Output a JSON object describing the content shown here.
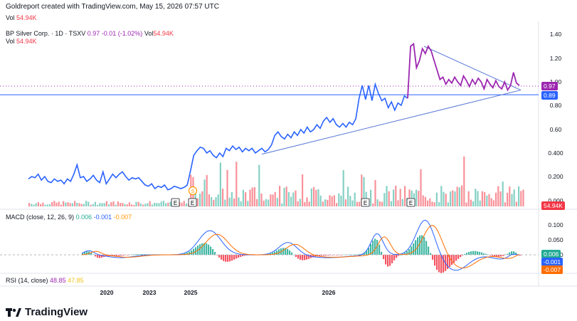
{
  "header": {
    "created": "Goldreport created with TradingView.com, May 15, 2026 07:57 UTC",
    "vol_label": "Vol",
    "vol_value": "54.94K"
  },
  "main_legend": {
    "symbol": "BP Silver Corp. · 1D · TSXV",
    "price": "0.97",
    "change": "-0.01 (-1.02%)",
    "vol_label": "Vol",
    "vol_value": "54.94K",
    "vol2_label": "Vol",
    "vol2_value": "54.94K"
  },
  "macd_legend": {
    "label": "MACD (close, 12, 26, 9)",
    "hist": "0.006",
    "macd": "-0.001",
    "signal": "-0.007"
  },
  "rsi_legend": {
    "label": "RSI (14, close)",
    "rsi": "48.85",
    "ma": "47.85"
  },
  "badges": {
    "price": "0.97",
    "level": "0.89",
    "volume": "54.94K",
    "macd_hist": "0.006",
    "macd": "-0.001",
    "signal": "-0.007"
  },
  "events": {
    "earnings": "E",
    "dividend": "S"
  },
  "footer": {
    "brand": "TradingView"
  },
  "colors": {
    "price_line_early": "#2962ff",
    "price_line_late": "#9c27b0",
    "trendline": "#5b7bd6",
    "level_line": "#2962ff",
    "vol_up": "#22ab94",
    "vol_down": "#f23645",
    "macd_line": "#2962ff",
    "signal_line": "#ff6d00",
    "hist_up": "#22ab94",
    "hist_down": "#f23645"
  },
  "chart_data": {
    "type": "line",
    "price_axis": {
      "ticks": [
        "1.40",
        "1.20",
        "1.00",
        "0.80",
        "0.60",
        "0.400",
        "0.200",
        "0.000"
      ],
      "ylim": [
        0,
        1.45
      ]
    },
    "macd_axis": {
      "ticks": [
        "0.100",
        "0.050",
        "0.000"
      ]
    },
    "time_axis": {
      "ticks": [
        "2020",
        "2023",
        "2025",
        "2026"
      ]
    },
    "horizontal_level": 0.89,
    "last_price": 0.97,
    "last_volume": "54.94K",
    "series": [
      {
        "values": [
          0.18,
          0.2,
          0.19,
          0.22,
          0.17,
          0.2,
          0.16,
          0.15,
          0.18,
          0.16,
          0.17,
          0.14,
          0.18,
          0.16,
          0.22,
          0.3,
          0.19,
          0.2,
          0.16,
          0.18,
          0.21,
          0.17,
          0.15,
          0.24,
          0.14,
          0.18,
          0.22,
          0.19,
          0.22,
          0.24,
          0.2,
          0.17,
          0.19,
          0.18,
          0.19,
          0.16,
          0.13,
          0.12,
          0.14,
          0.1,
          0.12,
          0.11,
          0.13,
          0.09,
          0.1,
          0.12,
          0.11,
          0.1,
          0.11,
          0.13,
          0.25,
          0.38,
          0.42,
          0.45,
          0.44,
          0.4,
          0.42,
          0.38,
          0.36,
          0.4,
          0.37,
          0.44,
          0.42,
          0.46,
          0.43,
          0.45,
          0.41,
          0.44,
          0.42,
          0.44,
          0.4,
          0.42,
          0.44,
          0.41,
          0.43,
          0.47,
          0.55,
          0.58,
          0.54,
          0.52,
          0.56,
          0.53,
          0.58,
          0.55,
          0.6,
          0.57,
          0.62,
          0.58,
          0.6,
          0.64,
          0.61,
          0.67,
          0.7,
          0.66,
          0.69,
          0.64,
          0.62,
          0.65,
          0.62,
          0.66,
          0.64,
          0.69,
          0.86,
          0.97,
          0.85,
          0.97,
          0.84,
          0.98,
          0.9,
          0.84,
          0.86,
          0.78,
          0.83,
          0.76,
          0.82,
          0.8,
          0.88,
          0.86
        ]
      },
      {
        "values": [
          0.86,
          1.3,
          1.32,
          1.12,
          1.18,
          1.28,
          1.24,
          1.3,
          1.26,
          1.18,
          1.1,
          1.02,
          1.04,
          0.98,
          1.02,
          0.99,
          1.04,
          1.0,
          0.97,
          1.05,
          1.01,
          0.96,
          1.02,
          0.98,
          1.03,
          1.0,
          0.94,
          1.02,
          0.98,
          0.95,
          1.01,
          0.96,
          0.94,
          1.0,
          0.93,
          0.97,
          1.08,
          0.99,
          0.97
        ]
      }
    ],
    "trendlines": [
      {
        "from": 0.39,
        "to": 0.93
      },
      {
        "from": 1.3,
        "to": 0.93
      }
    ]
  }
}
